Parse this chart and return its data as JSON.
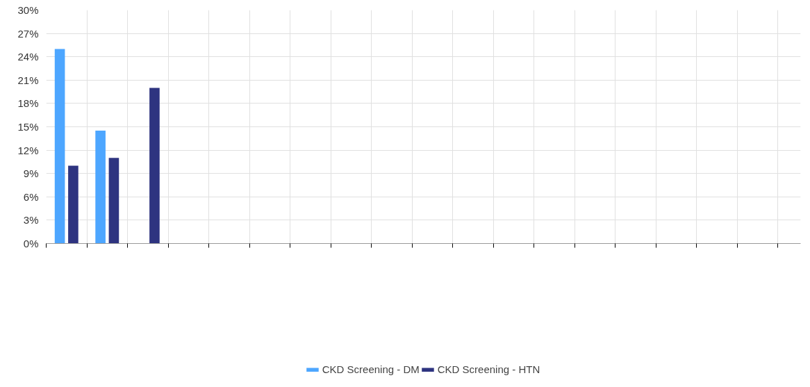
{
  "chart_data": {
    "type": "bar",
    "categories": [
      null,
      null,
      null,
      null,
      null,
      null,
      null,
      null,
      null,
      null,
      null,
      null,
      null,
      null,
      null,
      null,
      null,
      null,
      null
    ],
    "series": [
      {
        "name": "CKD Screening - DM",
        "color": "#4da6ff",
        "values": [
          25,
          14.5,
          null,
          null,
          null,
          null,
          null,
          null,
          null,
          null,
          null,
          null,
          null,
          null,
          null,
          null,
          null,
          null,
          null
        ]
      },
      {
        "name": "CKD Screening - HTN",
        "color": "#2e3480",
        "values": [
          10,
          11,
          20,
          null,
          null,
          null,
          null,
          null,
          null,
          null,
          null,
          null,
          null,
          null,
          null,
          null,
          null,
          null,
          null
        ]
      }
    ],
    "ylim": [
      0,
      30
    ],
    "yticks": [
      {
        "value": 0,
        "label": "0%"
      },
      {
        "value": 3,
        "label": "3%"
      },
      {
        "value": 6,
        "label": "6%"
      },
      {
        "value": 9,
        "label": "9%"
      },
      {
        "value": 12,
        "label": "12%"
      },
      {
        "value": 15,
        "label": "15%"
      },
      {
        "value": 18,
        "label": "18%"
      },
      {
        "value": 21,
        "label": "21%"
      },
      {
        "value": 24,
        "label": "24%"
      },
      {
        "value": 27,
        "label": "27%"
      },
      {
        "value": 30,
        "label": "30%"
      }
    ],
    "grid": true,
    "legend": "bottom"
  }
}
